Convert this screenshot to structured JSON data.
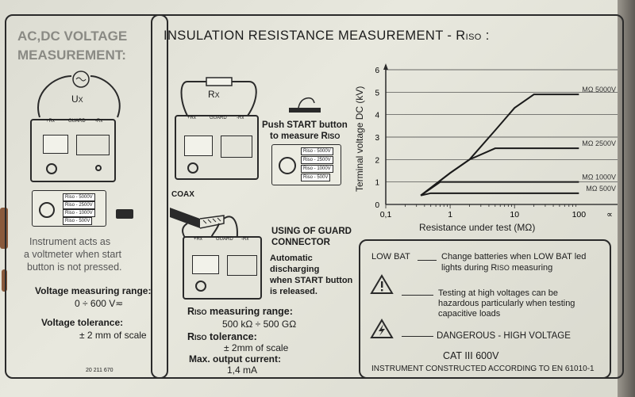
{
  "left_panel": {
    "title_line1": "AC,DC VOLTAGE",
    "title_line2": "MEASUREMENT:",
    "ux_label": "U",
    "ux_sub": "X",
    "terminals": [
      "+Rx",
      "GUARD",
      "-Rx"
    ],
    "selector_rows": [
      "Riso - 5000V",
      "Riso - 2500V",
      "Riso - 1000V",
      "Riso - 500V"
    ],
    "note_line1": "Instrument acts as",
    "note_line2": "a voltmeter when start",
    "note_line3": "button is not pressed.",
    "range_label": "Voltage measuring range:",
    "range_value": "0 ÷ 600 V≂",
    "tolerance_label": "Voltage tolerance:",
    "tolerance_value": "± 2 mm of scale",
    "part_number": "20 211 670"
  },
  "right_panel": {
    "title": "INSULATION  RESISTANCE  MEASUREMENT  -  R",
    "title_sub": "ISO",
    "title_tail": " :",
    "rx_label": "R",
    "rx_sub": "X",
    "terminals": [
      "+Rx",
      "GUARD",
      "-Rx"
    ],
    "push_line1": "Push START button",
    "push_line2": "to measure R",
    "push_sub": "ISO",
    "selector_rows": [
      "Riso - 5000V",
      "Riso - 2500V",
      "Riso - 1000V",
      "Riso - 500V"
    ],
    "coax_label": "COAX",
    "guard_line1": "USING OF GUARD",
    "guard_line2": "CONNECTOR",
    "auto_line1": "Automatic",
    "auto_line2": "discharging",
    "auto_line3": "when START button",
    "auto_line4": "is released.",
    "riso_range_label_r": "R",
    "riso_range_label_sub": "ISO",
    "riso_range_label_tail": " measuring range:",
    "riso_range_value": "500 kΩ ÷ 500 GΩ",
    "riso_tol_label_r": "R",
    "riso_tol_label_sub": "ISO",
    "riso_tol_label_tail": " tolerance:",
    "riso_tol_value": "± 2mm of scale",
    "max_current_label": "Max. output current:",
    "max_current_value": "1,4 mA"
  },
  "chart_data": {
    "type": "line",
    "ylabel": "Terminal voltage DC (kV)",
    "xlabel": "Resistance under test (MΩ)",
    "x_scale": "log",
    "x_ticks": [
      "0,1",
      "1",
      "10",
      "100",
      "∝"
    ],
    "y_ticks": [
      "0",
      "1",
      "2",
      "3",
      "4",
      "5",
      "6"
    ],
    "ylim": [
      0,
      6
    ],
    "grid": true,
    "series": [
      {
        "name": "MΩ 5000V",
        "points": [
          [
            0.35,
            0.4
          ],
          [
            1,
            1.4
          ],
          [
            2,
            2.0
          ],
          [
            5,
            3.3
          ],
          [
            10,
            4.3
          ],
          [
            20,
            4.9
          ],
          [
            100,
            4.9
          ]
        ]
      },
      {
        "name": "MΩ 2500V",
        "points": [
          [
            0.35,
            0.4
          ],
          [
            1,
            1.4
          ],
          [
            2,
            2.0
          ],
          [
            5,
            2.5
          ],
          [
            100,
            2.5
          ]
        ]
      },
      {
        "name": "MΩ 1000V",
        "points": [
          [
            0.35,
            0.4
          ],
          [
            0.7,
            1.0
          ],
          [
            100,
            1.0
          ]
        ]
      },
      {
        "name": "MΩ 500V",
        "points": [
          [
            0.35,
            0.4
          ],
          [
            0.5,
            0.5
          ],
          [
            100,
            0.5
          ]
        ]
      }
    ]
  },
  "legend_panel": {
    "lowbat_key": "LOW BAT",
    "lowbat_text1": "Change batteries when LOW BAT led",
    "lowbat_text2": "lights during R",
    "lowbat_sub": "ISO",
    "lowbat_tail": " measuring",
    "warn_text1": "Testing at high voltages can be",
    "warn_text2": "hazardous particularly when testing",
    "warn_text3": "capacitive loads",
    "danger_text": "DANGEROUS - HIGH VOLTAGE",
    "cat_text": "CAT III    600V",
    "standard_text": "INSTRUMENT CONSTRUCTED ACCORDING TO  EN 61010-1"
  }
}
